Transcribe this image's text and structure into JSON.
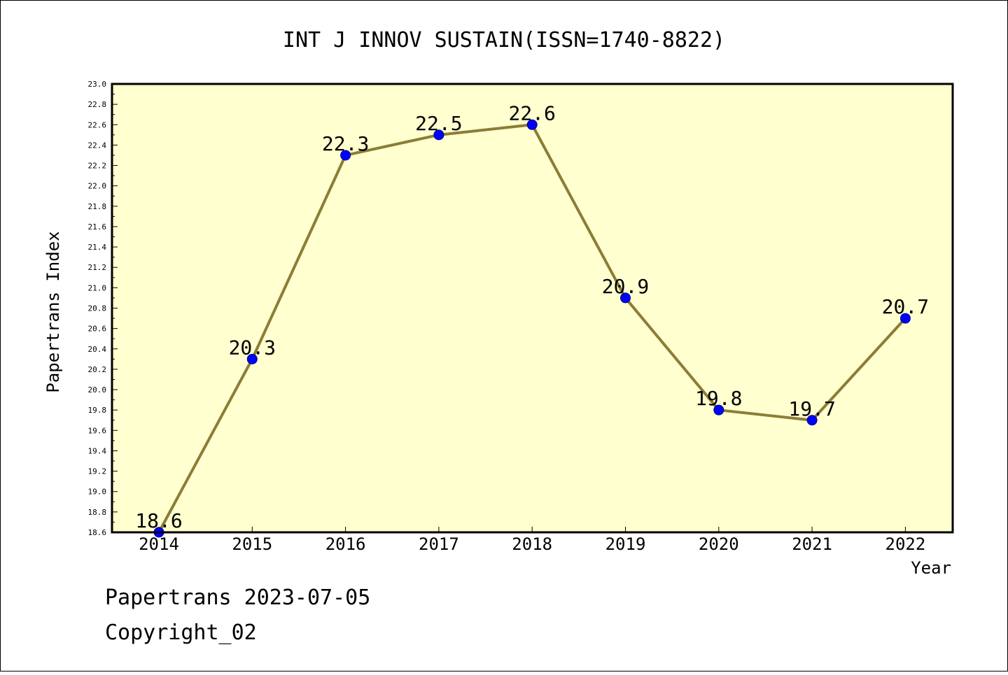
{
  "chart_data": {
    "type": "line",
    "title": "INT J INNOV SUSTAIN(ISSN=1740-8822)",
    "xlabel": "Year",
    "ylabel": "Papertrans Index",
    "categories": [
      "2014",
      "2015",
      "2016",
      "2017",
      "2018",
      "2019",
      "2020",
      "2021",
      "2022"
    ],
    "values": [
      18.6,
      20.3,
      22.3,
      22.5,
      22.6,
      20.9,
      19.8,
      19.7,
      20.7
    ],
    "value_labels": [
      "18.6",
      "20.3",
      "22.3",
      "22.5",
      "22.6",
      "20.9",
      "19.8",
      "19.7",
      "20.7"
    ],
    "ylim": [
      18.6,
      23.0
    ],
    "yticks": [
      "18.6",
      "18.8",
      "19.0",
      "19.2",
      "19.4",
      "19.6",
      "19.8",
      "20.0",
      "20.2",
      "20.4",
      "20.6",
      "20.8",
      "21.0",
      "21.2",
      "21.4",
      "21.6",
      "21.8",
      "22.0",
      "22.2",
      "22.4",
      "22.6",
      "22.8",
      "23.0"
    ],
    "grid": false,
    "colors": {
      "plot_background": "#ffffd0",
      "line": "#8b7d35",
      "marker": "#0000ff"
    }
  },
  "footer": {
    "line1": "Papertrans 2023-07-05",
    "line2": "Copyright_02"
  }
}
